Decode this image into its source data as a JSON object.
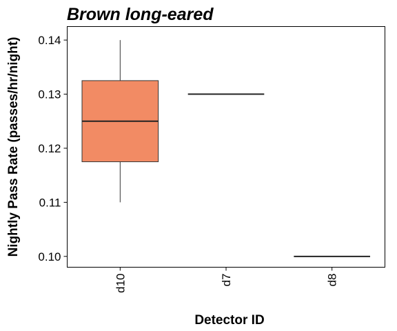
{
  "chart_data": {
    "type": "box",
    "title": "Brown long-eared",
    "xlabel": "Detector ID",
    "ylabel": "Nightly Pass Rate (passes/hr/night)",
    "ylim": [
      0.098,
      0.1425
    ],
    "yticks": [
      0.1,
      0.11,
      0.12,
      0.13,
      0.14
    ],
    "ytick_labels": [
      "0.10",
      "0.11",
      "0.12",
      "0.13",
      "0.14"
    ],
    "categories": [
      "d10",
      "d7",
      "d8"
    ],
    "boxes": [
      {
        "category": "d10",
        "min": 0.11,
        "q1": 0.1175,
        "median": 0.125,
        "q3": 0.1325,
        "max": 0.14
      },
      {
        "category": "d7",
        "min": 0.13,
        "q1": 0.13,
        "median": 0.13,
        "q3": 0.13,
        "max": 0.13
      },
      {
        "category": "d8",
        "min": 0.1,
        "q1": 0.1,
        "median": 0.1,
        "q3": 0.1,
        "max": 0.1
      }
    ],
    "fill_color": "#F28B64",
    "grid": false,
    "legend": "none"
  }
}
